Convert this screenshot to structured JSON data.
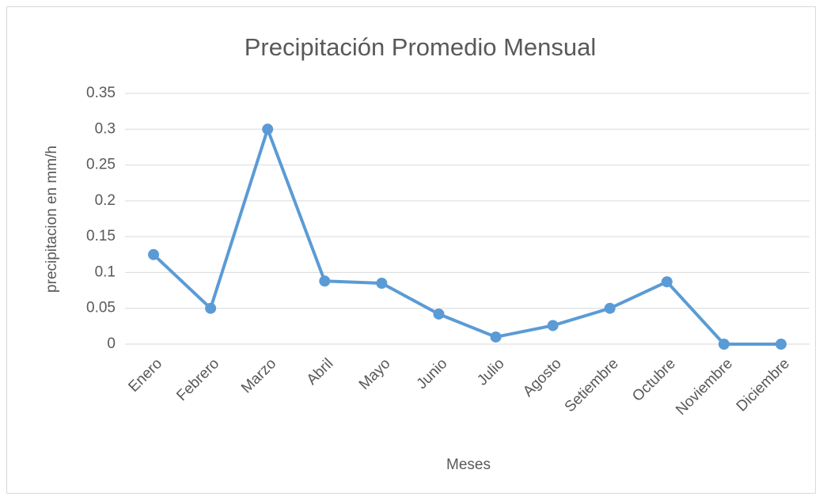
{
  "chart_data": {
    "type": "line",
    "title": "Precipitación Promedio Mensual",
    "x_label": "Meses",
    "y_label": "precipitacion en mm/h",
    "categories": [
      "Enero",
      "Febrero",
      "Marzo",
      "Abril",
      "Mayo",
      "Junio",
      "Julio",
      "Agosto",
      "Setiembre",
      "Octubre",
      "Noviembre",
      "Diciembre"
    ],
    "values": [
      0.125,
      0.05,
      0.3,
      0.088,
      0.085,
      0.042,
      0.01,
      0.026,
      0.05,
      0.087,
      0,
      0
    ],
    "color": "#5b9bd5",
    "ylim": [
      0,
      0.35
    ],
    "yticks": [
      0,
      0.05,
      0.1,
      0.15,
      0.2,
      0.25,
      0.3,
      0.35
    ],
    "grid": true
  }
}
